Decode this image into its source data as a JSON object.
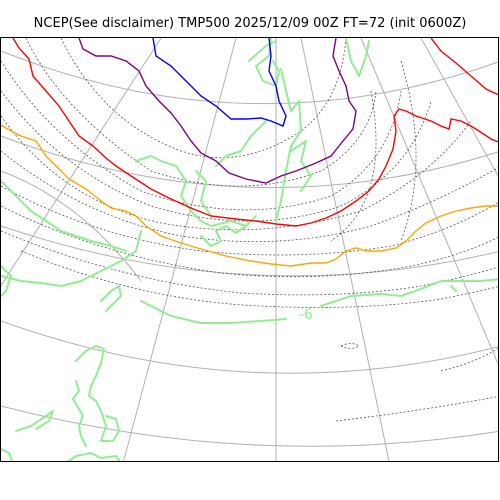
{
  "title": "NCEP(See disclaimer) TMP500 2025/12/09 00Z FT=72 (init 0600Z)",
  "contour_label": "-6",
  "colors": {
    "coastline": "#90ee90",
    "isotherm_blue": "#0000ff",
    "isotherm_purple": "#800080",
    "isotherm_red": "#ff0000",
    "isotherm_orange": "#ffa500",
    "contour_dotted": "#555555",
    "graticule": "#b0b0b0",
    "contour_label": "#90ee90"
  }
}
